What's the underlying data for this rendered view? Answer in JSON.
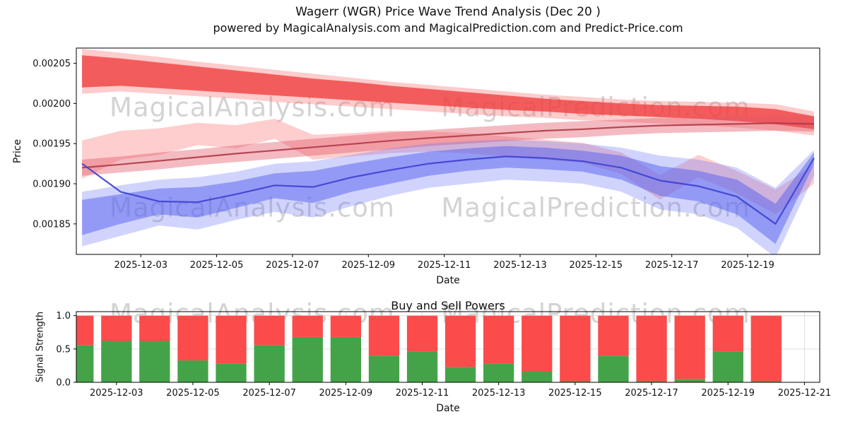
{
  "title": {
    "line1": "Wagerr (WGR) Price Wave Trend Analysis (Dec 20 )",
    "line2": "powered by MagicalAnalysis.com and MagicalPrediction.com and Predict-Price.com"
  },
  "watermarks": [
    "MagicalAnalysis.com",
    "MagicalPrediction.com"
  ],
  "chart_data": [
    {
      "type": "area",
      "title": "",
      "xlabel": "Date",
      "ylabel": "Price",
      "x_domain": [
        1.3,
        20.9
      ],
      "x_data_range": [
        1.45,
        20.75
      ],
      "ylim": [
        0.001812,
        0.002069
      ],
      "x_ticks": [
        "2025-12-03",
        "2025-12-05",
        "2025-12-07",
        "2025-12-09",
        "2025-12-11",
        "2025-12-13",
        "2025-12-15",
        "2025-12-17",
        "2025-12-19"
      ],
      "y_ticks": [
        {
          "value": 0.00185,
          "label": "0.00185"
        },
        {
          "value": 0.0019,
          "label": "0.00190"
        },
        {
          "value": 0.00195,
          "label": "0.00195"
        },
        {
          "value": 0.002,
          "label": "0.00200"
        },
        {
          "value": 0.00205,
          "label": "0.00205"
        }
      ],
      "bands": [
        {
          "name": "red-outer-band",
          "color": "#fa6e6e",
          "opacity": 0.35,
          "upper": [
            0.002068,
            0.002063,
            0.002058,
            0.002052,
            0.002047,
            0.002042,
            0.002037,
            0.002032,
            0.002027,
            0.002023,
            0.002019,
            0.002015,
            0.002011,
            0.002008,
            0.002005,
            0.002003,
            0.002002,
            0.002001,
            0.001999,
            0.00199
          ],
          "lower": [
            0.002012,
            0.002015,
            0.002012,
            0.002009,
            0.002006,
            0.002002,
            0.001999,
            0.001996,
            0.001993,
            0.00199,
            0.001987,
            0.001984,
            0.001982,
            0.001979,
            0.001977,
            0.001975,
            0.001973,
            0.00197,
            0.001966,
            0.00196
          ]
        },
        {
          "name": "red-main-band",
          "color": "#f04040",
          "opacity": 0.8,
          "upper": [
            0.00206,
            0.002056,
            0.002051,
            0.002046,
            0.002041,
            0.002036,
            0.002031,
            0.002027,
            0.002022,
            0.002018,
            0.002014,
            0.00201,
            0.002006,
            0.002003,
            0.002,
            0.001998,
            0.001997,
            0.001996,
            0.001993,
            0.001984
          ],
          "lower": [
            0.00202,
            0.002022,
            0.002019,
            0.002016,
            0.002013,
            0.00201,
            0.002007,
            0.002004,
            0.002001,
            0.001998,
            0.001995,
            0.001992,
            0.00199,
            0.001987,
            0.001985,
            0.001983,
            0.001981,
            0.001978,
            0.001974,
            0.001968
          ]
        },
        {
          "name": "pink-wave-band",
          "color": "#fc8484",
          "opacity": 0.4,
          "upper": [
            0.001954,
            0.001966,
            0.001969,
            0.001976,
            0.001973,
            0.001981,
            0.001961,
            0.001963,
            0.001966,
            0.001965,
            0.001963,
            0.001959,
            0.001955,
            0.001951,
            0.001939,
            0.001911,
            0.001936,
            0.001916,
            0.001893,
            0.001923
          ],
          "lower": [
            0.001906,
            0.00193,
            0.001936,
            0.001948,
            0.001944,
            0.001956,
            0.00193,
            0.001934,
            0.001938,
            0.00194,
            0.001938,
            0.001934,
            0.00193,
            0.001926,
            0.001912,
            0.00188,
            0.001908,
            0.001888,
            0.001862,
            0.0019
          ]
        },
        {
          "name": "red-trend-band",
          "color": "#e05565",
          "opacity": 0.4,
          "upper": [
            0.00193,
            0.001934,
            0.001939,
            0.001943,
            0.001948,
            0.001952,
            0.001956,
            0.00196,
            0.001964,
            0.001967,
            0.00197,
            0.001973,
            0.001976,
            0.001978,
            0.00198,
            0.001982,
            0.001983,
            0.001984,
            0.001985,
            0.001984
          ],
          "lower": [
            0.00191,
            0.001914,
            0.001918,
            0.001923,
            0.001927,
            0.001931,
            0.001935,
            0.001939,
            0.001943,
            0.001947,
            0.00195,
            0.001953,
            0.001956,
            0.001958,
            0.001961,
            0.001963,
            0.001964,
            0.001965,
            0.001966,
            0.001965
          ]
        },
        {
          "name": "blue-outer-band",
          "color": "#6470fa",
          "opacity": 0.3,
          "upper": [
            0.00189,
            0.001898,
            0.001905,
            0.001908,
            0.001915,
            0.001925,
            0.001928,
            0.001936,
            0.001944,
            0.00195,
            0.001953,
            0.001955,
            0.001953,
            0.00195,
            0.001945,
            0.001935,
            0.00193,
            0.00192,
            0.001895,
            0.001942
          ],
          "lower": [
            0.001822,
            0.001835,
            0.001848,
            0.001843,
            0.001855,
            0.001865,
            0.001858,
            0.001872,
            0.001885,
            0.001895,
            0.0019,
            0.001905,
            0.001903,
            0.0019,
            0.00189,
            0.001868,
            0.001862,
            0.001845,
            0.001808,
            0.00191
          ]
        },
        {
          "name": "blue-main-band",
          "color": "#5560f0",
          "opacity": 0.5,
          "upper": [
            0.00188,
            0.001887,
            0.001894,
            0.001896,
            0.001903,
            0.001913,
            0.001916,
            0.001925,
            0.001933,
            0.00194,
            0.001944,
            0.001947,
            0.001945,
            0.001941,
            0.001935,
            0.001922,
            0.001916,
            0.001905,
            0.001875,
            0.001939
          ],
          "lower": [
            0.001836,
            0.00185,
            0.001862,
            0.001858,
            0.00187,
            0.001882,
            0.001876,
            0.00189,
            0.0019,
            0.00191,
            0.001916,
            0.00192,
            0.001918,
            0.001915,
            0.001905,
            0.001885,
            0.001878,
            0.001862,
            0.001825,
            0.001924
          ]
        }
      ],
      "lines": [
        {
          "name": "red-trend-line",
          "color": "#b03a48",
          "width": 2.2,
          "opacity": 0.9,
          "y": [
            0.00192,
            0.001924,
            0.0019285,
            0.001933,
            0.0019375,
            0.0019415,
            0.0019455,
            0.0019495,
            0.0019535,
            0.001957,
            0.00196,
            0.001963,
            0.001966,
            0.001968,
            0.0019705,
            0.0019725,
            0.0019735,
            0.0019745,
            0.0019755,
            0.0019745
          ]
        },
        {
          "name": "blue-trend-line",
          "color": "#4046d2",
          "width": 2.2,
          "opacity": 0.95,
          "y": [
            0.001925,
            0.00189,
            0.001878,
            0.001877,
            0.001887,
            0.001898,
            0.001896,
            0.001908,
            0.001917,
            0.001925,
            0.00193,
            0.001934,
            0.001932,
            0.001928,
            0.00192,
            0.001904,
            0.001897,
            0.001884,
            0.00185,
            0.001932
          ]
        }
      ]
    },
    {
      "type": "bar",
      "title": "Buy and Sell Powers",
      "xlabel": "Date",
      "ylabel": "Signal Strength",
      "x_domain": [
        1.95,
        21.4
      ],
      "ylim": [
        0,
        1.06
      ],
      "bar_width_days": 0.8,
      "grid_y": [
        0.5,
        1.0
      ],
      "x_ticks": [
        "2025-12-03",
        "2025-12-05",
        "2025-12-07",
        "2025-12-09",
        "2025-12-11",
        "2025-12-13",
        "2025-12-15",
        "2025-12-17",
        "2025-12-19",
        "2025-12-21"
      ],
      "y_ticks": [
        {
          "value": 0,
          "label": "0.0"
        },
        {
          "value": 0.5,
          "label": "0.5"
        },
        {
          "value": 1,
          "label": "1.0"
        }
      ],
      "categories": [
        "2025-12-02",
        "2025-12-03",
        "2025-12-04",
        "2025-12-05",
        "2025-12-06",
        "2025-12-07",
        "2025-12-08",
        "2025-12-09",
        "2025-12-10",
        "2025-12-11",
        "2025-12-12",
        "2025-12-13",
        "2025-12-14",
        "2025-12-15",
        "2025-12-16",
        "2025-12-17",
        "2025-12-18",
        "2025-12-19",
        "2025-12-20"
      ],
      "series": [
        {
          "name": "Buy",
          "color": "#44a349",
          "values": [
            0.56,
            0.62,
            0.62,
            0.33,
            0.28,
            0.56,
            0.68,
            0.68,
            0.4,
            0.46,
            0.23,
            0.28,
            0.17,
            0.02,
            0.4,
            0.02,
            0.05,
            0.46,
            0.02
          ]
        },
        {
          "name": "Sell",
          "color": "#fb4b4b",
          "values": [
            0.44,
            0.38,
            0.38,
            0.67,
            0.72,
            0.44,
            0.32,
            0.32,
            0.6,
            0.54,
            0.77,
            0.72,
            0.83,
            0.98,
            0.6,
            0.98,
            0.95,
            0.54,
            0.98
          ]
        }
      ]
    }
  ]
}
